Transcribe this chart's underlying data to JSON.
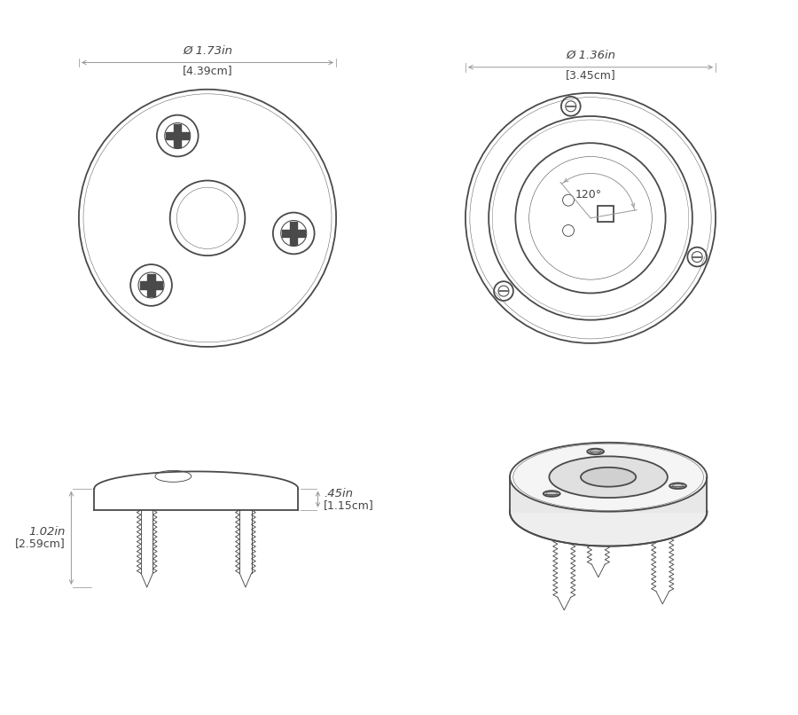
{
  "bg_color": "#ffffff",
  "line_color": "#4a4a4a",
  "dim_color": "#999999",
  "text_color": "#444444",
  "dim1_label_in": "Ø 1.73in",
  "dim1_label_cm": "4.39cm",
  "dim2_label_in": "Ø 1.36in",
  "dim2_label_cm": "3.45cm",
  "dim3_label_in": ".45in",
  "dim3_label_cm": "1.15cm",
  "dim4_label_in": "1.02in",
  "dim4_label_cm": "2.59cm",
  "angle_label": "120°",
  "lw_main": 1.3,
  "lw_thin": 0.65,
  "lw_dim": 0.7,
  "font_size_label": 9.5,
  "font_size_bracket": 9.0
}
